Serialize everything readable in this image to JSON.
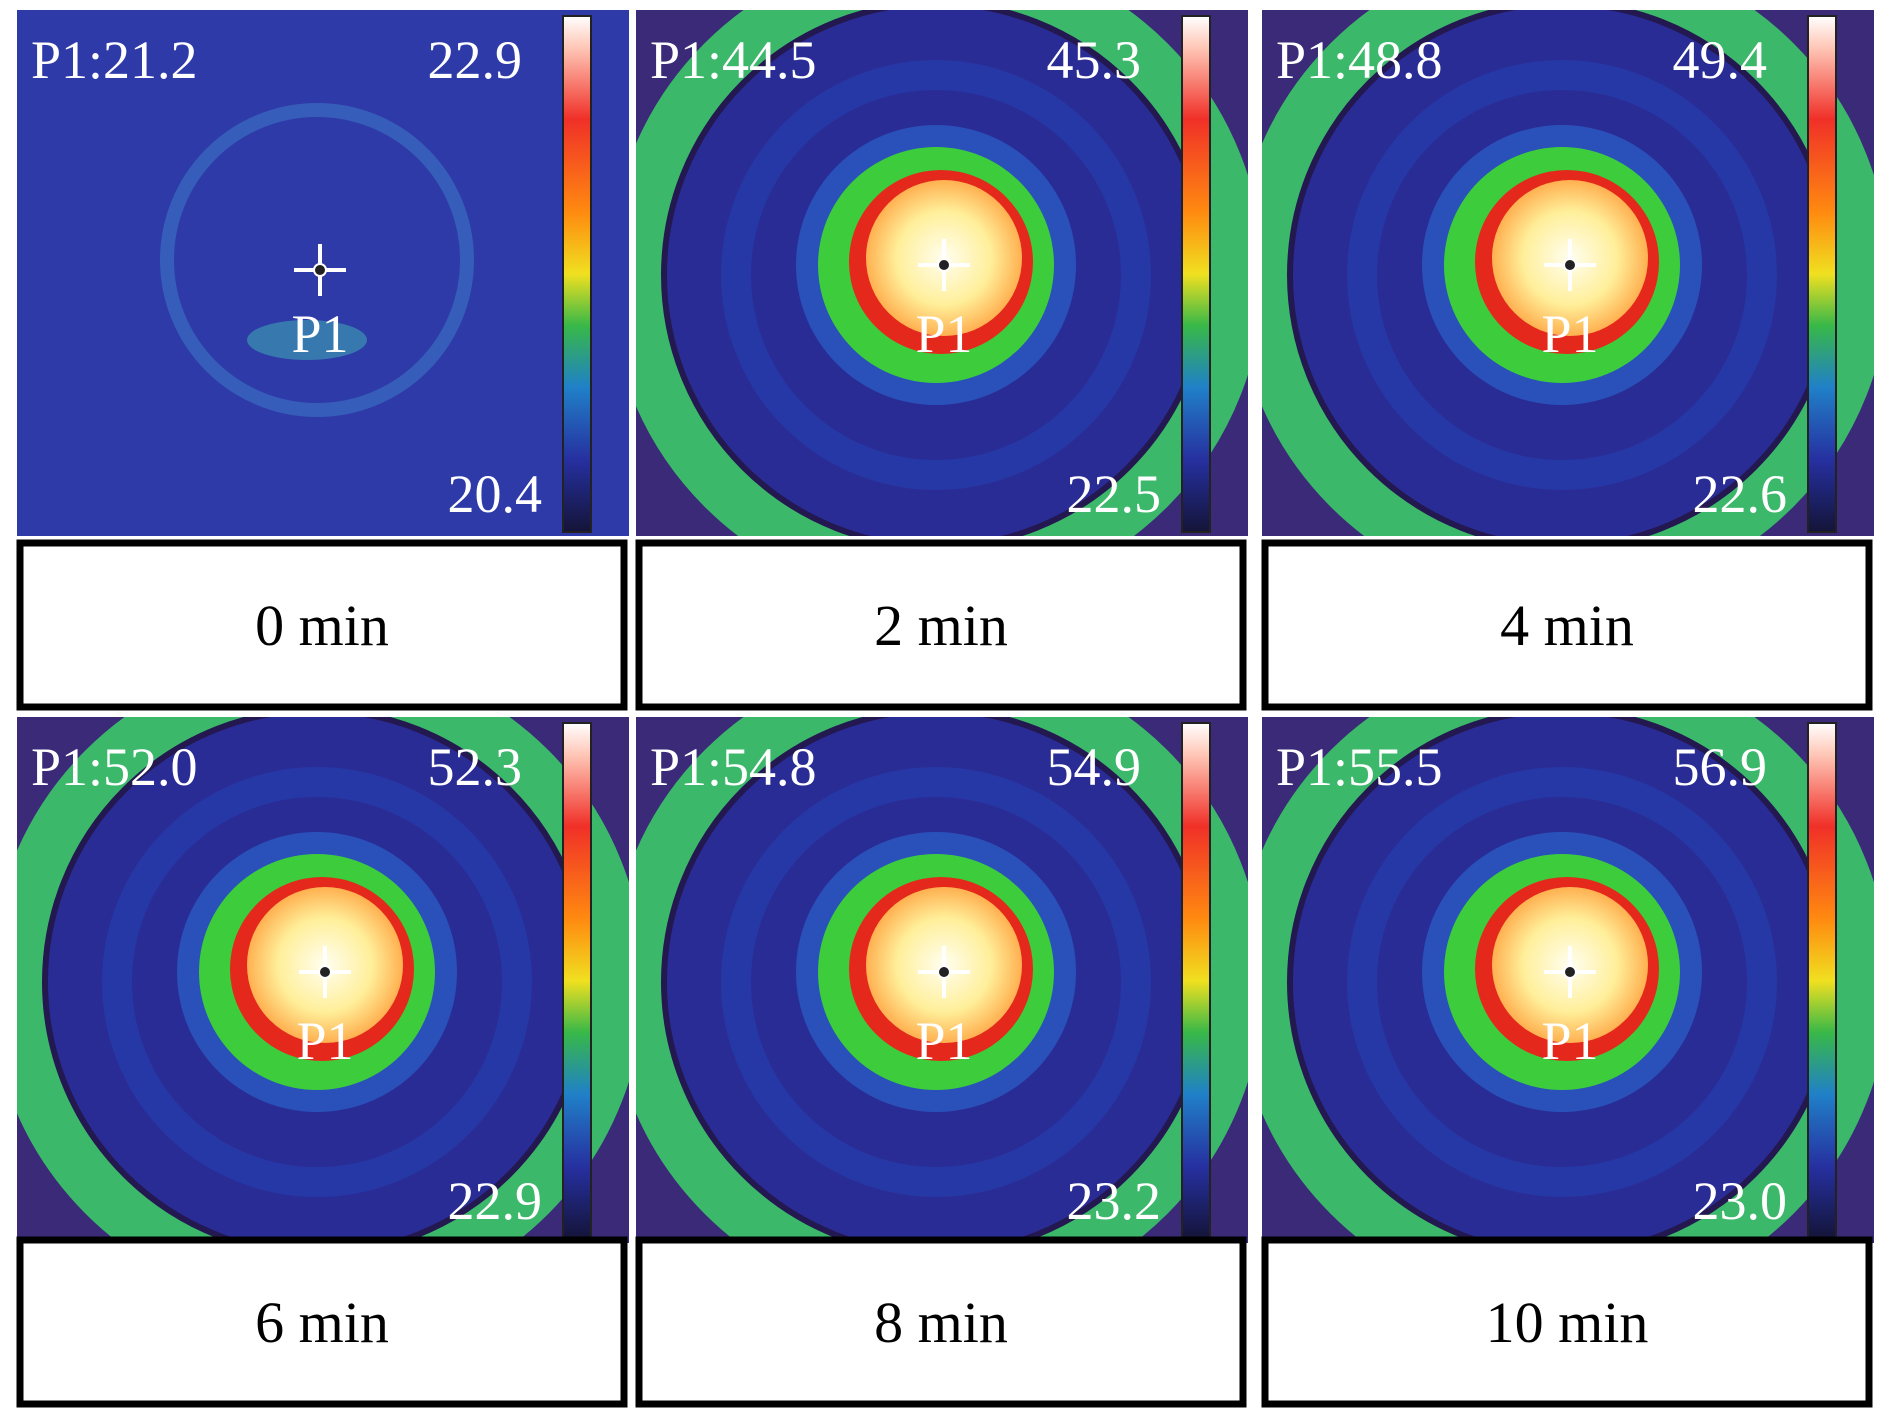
{
  "panels": [
    {
      "reading": "P1:21.2",
      "max": "22.9",
      "min": "20.4",
      "point": "P1",
      "caption": "0 min"
    },
    {
      "reading": "P1:44.5",
      "max": "45.3",
      "min": "22.5",
      "point": "P1",
      "caption": "2 min"
    },
    {
      "reading": "P1:48.8",
      "max": "49.4",
      "min": "22.6",
      "point": "P1",
      "caption": "4 min"
    },
    {
      "reading": "P1:52.0",
      "max": "52.3",
      "min": "22.9",
      "point": "P1",
      "caption": "6 min"
    },
    {
      "reading": "P1:54.8",
      "max": "54.9",
      "min": "23.2",
      "point": "P1",
      "caption": "8 min"
    },
    {
      "reading": "P1:55.5",
      "max": "56.9",
      "min": "23.0",
      "point": "P1",
      "caption": "10 min"
    }
  ]
}
